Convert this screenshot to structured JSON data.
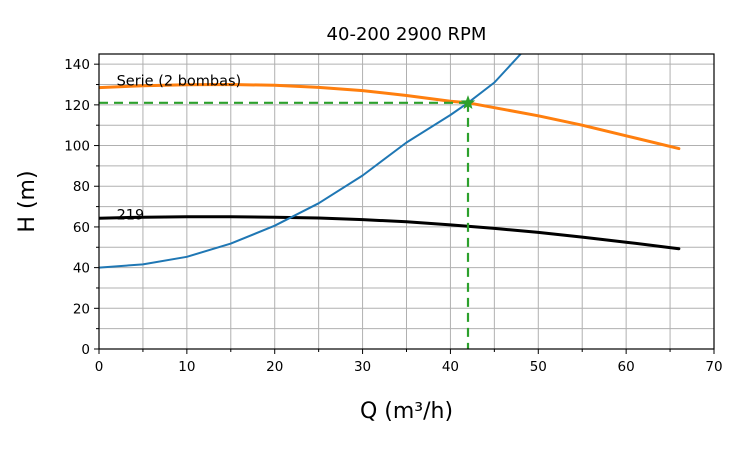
{
  "chart_data": {
    "type": "line",
    "title": "40-200 2900 RPM",
    "xlabel": "Q (m³/h)",
    "ylabel": "H (m)",
    "xlim": [
      0,
      70
    ],
    "ylim": [
      0,
      145
    ],
    "xticks": [
      0,
      10,
      20,
      30,
      40,
      50,
      60,
      70
    ],
    "yticks": [
      0,
      20,
      40,
      60,
      80,
      100,
      120,
      140
    ],
    "grid": true,
    "series": [
      {
        "color": "#ff7f0e",
        "x": [
          0,
          5,
          10,
          15,
          20,
          25,
          30,
          35,
          40,
          42,
          45,
          50,
          55,
          60,
          66
        ],
        "y": [
          128.5,
          129.4,
          129.9,
          130,
          129.6,
          128.6,
          127.0,
          124.6,
          121.8,
          121,
          118.6,
          114.6,
          110,
          104.8,
          98.5
        ]
      },
      {
        "color": "#000000",
        "x": [
          0,
          5,
          10,
          15,
          20,
          25,
          30,
          35,
          40,
          45,
          50,
          55,
          60,
          66
        ],
        "y": [
          64.3,
          64.8,
          65.0,
          65.0,
          64.8,
          64.4,
          63.6,
          62.5,
          61.0,
          59.3,
          57.3,
          55.0,
          52.5,
          49.3
        ]
      },
      {
        "color": "#1f77b4",
        "x": [
          0,
          5,
          10,
          15,
          20,
          25,
          30,
          35,
          40,
          42,
          45,
          48
        ],
        "y": [
          40,
          41.6,
          45.3,
          51.8,
          60.6,
          71.6,
          85.3,
          101.5,
          115.0,
          121,
          131.0,
          145.0
        ]
      }
    ],
    "operating_point": {
      "x": 42,
      "y": 121,
      "color": "#2ca02c"
    },
    "annotations": [
      {
        "text": "Serie (2 bombas)",
        "x": 2,
        "y": 132
      },
      {
        "text": "219",
        "x": 2,
        "y": 66
      }
    ]
  }
}
